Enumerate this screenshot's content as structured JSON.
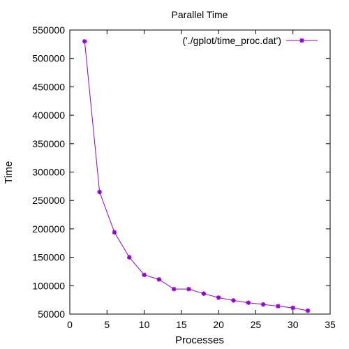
{
  "chart_data": {
    "type": "line",
    "title": "Parallel Time",
    "xlabel": "Processes",
    "ylabel": "Time",
    "xlim": [
      0,
      35
    ],
    "ylim": [
      50000,
      550000
    ],
    "xticks": [
      0,
      5,
      10,
      15,
      20,
      25,
      30,
      35
    ],
    "yticks": [
      50000,
      100000,
      150000,
      200000,
      250000,
      300000,
      350000,
      400000,
      450000,
      500000,
      550000
    ],
    "grid": false,
    "legend_position": "top-right",
    "series": [
      {
        "name": "('./gplot/time_proc.dat')",
        "color": "#9400d3",
        "x": [
          2,
          4,
          6,
          8,
          10,
          12,
          14,
          16,
          18,
          20,
          22,
          24,
          26,
          28,
          30,
          32
        ],
        "y": [
          530000,
          265000,
          194000,
          150000,
          119000,
          111000,
          94000,
          94000,
          86000,
          79000,
          74000,
          70000,
          67000,
          64000,
          61000,
          56000
        ]
      }
    ]
  }
}
